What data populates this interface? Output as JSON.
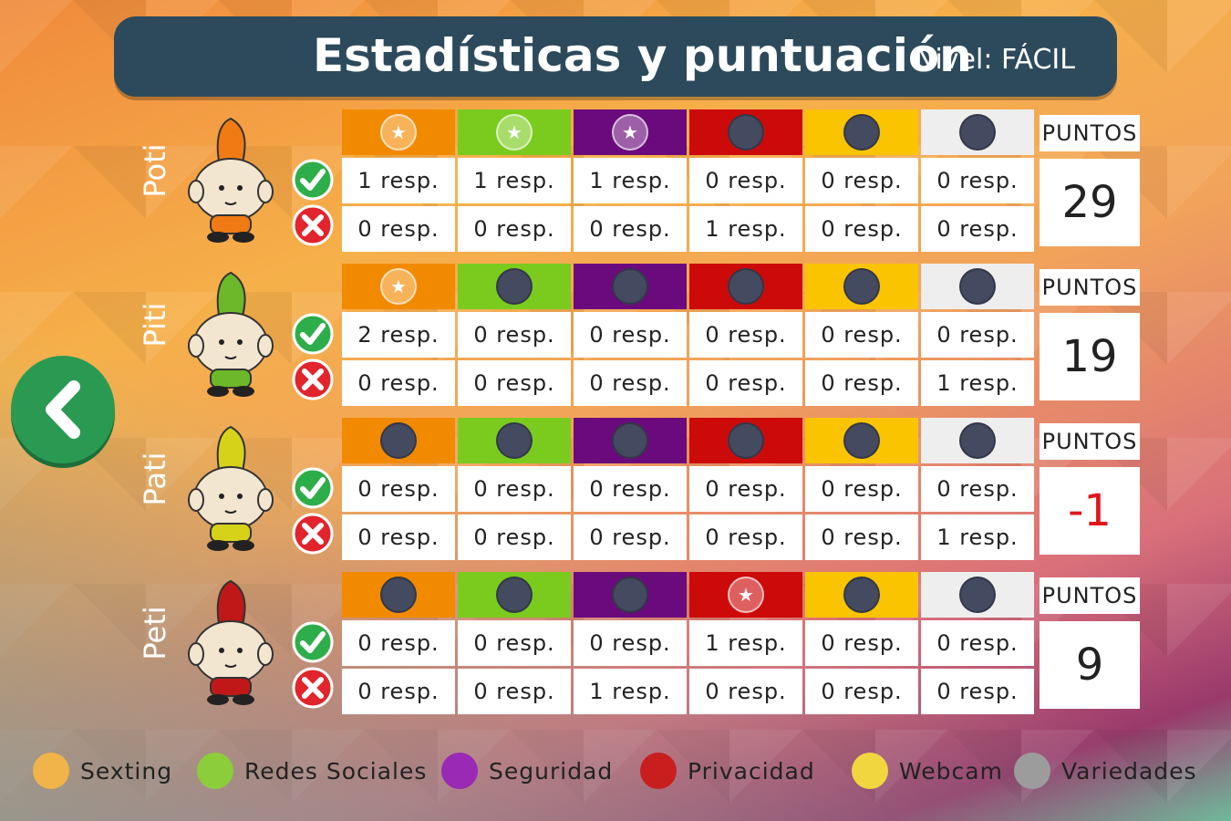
{
  "header": {
    "title": "Estadísticas y puntuación",
    "level": "Nivel: FÁCIL"
  },
  "colors": {
    "header_bg": "#2c4a5c",
    "back_button": "#2a9a52",
    "categories": [
      "#f28a00",
      "#7acb1e",
      "#6b0a7c",
      "#cc0a0a",
      "#fac400",
      "#eeeeee"
    ],
    "negative_points": "#e0161c"
  },
  "points_label": "PUNTOS",
  "players": [
    {
      "name": "Poti",
      "color": "#f07a14",
      "stars": [
        true,
        true,
        true,
        false,
        false,
        false
      ],
      "correct": [
        "1 resp.",
        "1 resp.",
        "1 resp.",
        "0 resp.",
        "0 resp.",
        "0 resp."
      ],
      "wrong": [
        "0 resp.",
        "0 resp.",
        "0 resp.",
        "1 resp.",
        "0 resp.",
        "0 resp."
      ],
      "points": "29"
    },
    {
      "name": "Piti",
      "color": "#6cb82a",
      "stars": [
        true,
        false,
        false,
        false,
        false,
        false
      ],
      "correct": [
        "2 resp.",
        "0 resp.",
        "0 resp.",
        "0 resp.",
        "0 resp.",
        "0 resp."
      ],
      "wrong": [
        "0 resp.",
        "0 resp.",
        "0 resp.",
        "0 resp.",
        "0 resp.",
        "1 resp."
      ],
      "points": "19"
    },
    {
      "name": "Pati",
      "color": "#d6d21a",
      "stars": [
        false,
        false,
        false,
        false,
        false,
        false
      ],
      "correct": [
        "0 resp.",
        "0 resp.",
        "0 resp.",
        "0 resp.",
        "0 resp.",
        "0 resp."
      ],
      "wrong": [
        "0 resp.",
        "0 resp.",
        "0 resp.",
        "0 resp.",
        "0 resp.",
        "1 resp."
      ],
      "points": "-1"
    },
    {
      "name": "Peti",
      "color": "#c01818",
      "stars": [
        false,
        false,
        false,
        true,
        false,
        false
      ],
      "correct": [
        "0 resp.",
        "0 resp.",
        "0 resp.",
        "1 resp.",
        "0 resp.",
        "0 resp."
      ],
      "wrong": [
        "0 resp.",
        "0 resp.",
        "1 resp.",
        "0 resp.",
        "0 resp.",
        "0 resp."
      ],
      "points": "9"
    }
  ],
  "legend": [
    {
      "label": "Sexting",
      "color": "#f0b44a"
    },
    {
      "label": "Redes Sociales",
      "color": "#8ccd3c"
    },
    {
      "label": "Seguridad",
      "color": "#9a2ab4"
    },
    {
      "label": "Privacidad",
      "color": "#c81e1e"
    },
    {
      "label": "Webcam",
      "color": "#f2d640"
    },
    {
      "label": "Variedades",
      "color": "#9c9c9c"
    }
  ],
  "icons": {
    "back": "back-arrow-icon",
    "correct": "check-icon",
    "wrong": "cross-icon",
    "star": "star-icon"
  }
}
